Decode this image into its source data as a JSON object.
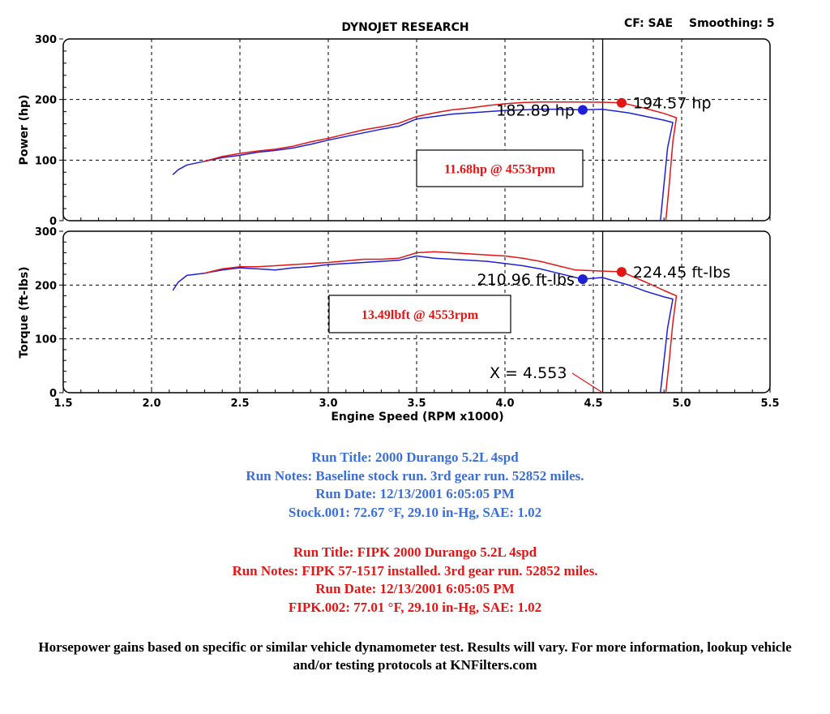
{
  "header": {
    "title": "DYNOJET RESEARCH",
    "cf_label": "CF: SAE",
    "smoothing_label": "Smoothing: 5"
  },
  "colors": {
    "baseline": "#1f1fd6",
    "modified": "#e31515",
    "baseline_text": "#3a6fd8",
    "modified_text": "#e31515"
  },
  "chart_data": [
    {
      "type": "line",
      "panel": "power",
      "ylabel": "Power (hp)",
      "ylim": [
        0,
        300
      ],
      "yticks": [
        0,
        100,
        200,
        300
      ],
      "xlim": [
        1.5,
        5.5
      ],
      "grid": true,
      "series": [
        {
          "id": "baseline",
          "points": [
            [
              2.12,
              76
            ],
            [
              2.15,
              84
            ],
            [
              2.2,
              92
            ],
            [
              2.3,
              98
            ],
            [
              2.4,
              104
            ],
            [
              2.5,
              108
            ],
            [
              2.6,
              113
            ],
            [
              2.7,
              116
            ],
            [
              2.8,
              120
            ],
            [
              2.9,
              126
            ],
            [
              3.0,
              133
            ],
            [
              3.1,
              139
            ],
            [
              3.2,
              145
            ],
            [
              3.3,
              151
            ],
            [
              3.4,
              156
            ],
            [
              3.5,
              168
            ],
            [
              3.6,
              172
            ],
            [
              3.7,
              176
            ],
            [
              3.8,
              178
            ],
            [
              3.9,
              180
            ],
            [
              4.0,
              182
            ],
            [
              4.1,
              183
            ],
            [
              4.2,
              184
            ],
            [
              4.3,
              184
            ],
            [
              4.44,
              182.89
            ],
            [
              4.55,
              184
            ],
            [
              4.7,
              178
            ],
            [
              4.8,
              172
            ],
            [
              4.9,
              166
            ],
            [
              4.95,
              162
            ],
            [
              4.92,
              120
            ],
            [
              4.9,
              60
            ],
            [
              4.88,
              0
            ]
          ]
        },
        {
          "id": "modified",
          "points": [
            [
              2.3,
              98
            ],
            [
              2.4,
              106
            ],
            [
              2.5,
              111
            ],
            [
              2.6,
              115
            ],
            [
              2.7,
              118
            ],
            [
              2.8,
              123
            ],
            [
              2.9,
              130
            ],
            [
              3.0,
              136
            ],
            [
              3.1,
              143
            ],
            [
              3.2,
              150
            ],
            [
              3.3,
              155
            ],
            [
              3.4,
              161
            ],
            [
              3.5,
              172
            ],
            [
              3.6,
              178
            ],
            [
              3.7,
              183
            ],
            [
              3.8,
              186
            ],
            [
              3.9,
              190
            ],
            [
              4.0,
              193
            ],
            [
              4.1,
              195
            ],
            [
              4.2,
              196
            ],
            [
              4.3,
              196
            ],
            [
              4.4,
              196
            ],
            [
              4.553,
              195.5
            ],
            [
              4.66,
              194.57
            ],
            [
              4.8,
              185
            ],
            [
              4.9,
              177
            ],
            [
              4.97,
              170
            ],
            [
              4.95,
              130
            ],
            [
              4.93,
              60
            ],
            [
              4.91,
              0
            ]
          ]
        }
      ],
      "peaks": [
        {
          "series": "baseline",
          "x": 4.44,
          "y": 182.89,
          "label": "182.89 hp"
        },
        {
          "series": "modified",
          "x": 4.66,
          "y": 194.57,
          "label": "194.57 hp"
        }
      ],
      "gain_label": "11.68hp @ 4553rpm"
    },
    {
      "type": "line",
      "panel": "torque",
      "ylabel": "Torque (ft-lbs)",
      "xlabel": "Engine Speed (RPM x1000)",
      "ylim": [
        0,
        300
      ],
      "yticks": [
        0,
        100,
        200,
        300
      ],
      "xlim": [
        1.5,
        5.5
      ],
      "xticks": [
        "1.5",
        "2.0",
        "2.5",
        "3.0",
        "3.5",
        "4.0",
        "4.5",
        "5.5"
      ],
      "xtick_values": [
        1.5,
        2.0,
        2.5,
        3.0,
        3.5,
        4.0,
        4.5,
        5.5
      ],
      "xtick_extra": {
        "value": 5.0,
        "label": "5.0"
      },
      "grid": true,
      "series": [
        {
          "id": "baseline",
          "points": [
            [
              2.12,
              190
            ],
            [
              2.15,
              205
            ],
            [
              2.2,
              218
            ],
            [
              2.3,
              222
            ],
            [
              2.4,
              228
            ],
            [
              2.5,
              232
            ],
            [
              2.6,
              230
            ],
            [
              2.7,
              228
            ],
            [
              2.8,
              232
            ],
            [
              2.9,
              234
            ],
            [
              3.0,
              238
            ],
            [
              3.1,
              240
            ],
            [
              3.2,
              242
            ],
            [
              3.3,
              244
            ],
            [
              3.4,
              246
            ],
            [
              3.5,
              254
            ],
            [
              3.6,
              250
            ],
            [
              3.7,
              248
            ],
            [
              3.8,
              246
            ],
            [
              3.9,
              244
            ],
            [
              4.0,
              240
            ],
            [
              4.1,
              236
            ],
            [
              4.2,
              230
            ],
            [
              4.3,
              222
            ],
            [
              4.44,
              210.96
            ],
            [
              4.55,
              214
            ],
            [
              4.7,
              200
            ],
            [
              4.8,
              188
            ],
            [
              4.9,
              178
            ],
            [
              4.95,
              174
            ],
            [
              4.92,
              120
            ],
            [
              4.9,
              60
            ],
            [
              4.88,
              0
            ]
          ]
        },
        {
          "id": "modified",
          "points": [
            [
              2.3,
              222
            ],
            [
              2.4,
              230
            ],
            [
              2.5,
              234
            ],
            [
              2.6,
              234
            ],
            [
              2.7,
              236
            ],
            [
              2.8,
              238
            ],
            [
              2.9,
              240
            ],
            [
              3.0,
              242
            ],
            [
              3.1,
              245
            ],
            [
              3.2,
              248
            ],
            [
              3.3,
              248
            ],
            [
              3.4,
              250
            ],
            [
              3.5,
              260
            ],
            [
              3.6,
              262
            ],
            [
              3.7,
              260
            ],
            [
              3.8,
              258
            ],
            [
              3.9,
              256
            ],
            [
              4.0,
              254
            ],
            [
              4.1,
              250
            ],
            [
              4.2,
              244
            ],
            [
              4.3,
              236
            ],
            [
              4.4,
              228
            ],
            [
              4.553,
              226
            ],
            [
              4.66,
              224.45
            ],
            [
              4.8,
              205
            ],
            [
              4.9,
              190
            ],
            [
              4.97,
              180
            ],
            [
              4.95,
              130
            ],
            [
              4.93,
              60
            ],
            [
              4.91,
              0
            ]
          ]
        }
      ],
      "peaks": [
        {
          "series": "baseline",
          "x": 4.44,
          "y": 210.96,
          "label": "210.96 ft-lbs"
        },
        {
          "series": "modified",
          "x": 4.66,
          "y": 224.45,
          "label": "224.45 ft-lbs"
        }
      ],
      "gain_label": "13.49lbft @ 4553rpm",
      "cursor": {
        "x": 4.553,
        "label": "X = 4.553"
      }
    }
  ],
  "runs": {
    "baseline": [
      "Run Title: 2000 Durango 5.2L 4spd",
      "Run Notes: Baseline stock run. 3rd gear run. 52852 miles.",
      "Run Date: 12/13/2001 6:05:05 PM",
      "Stock.001: 72.67 °F, 29.10 in-Hg, SAE: 1.02"
    ],
    "modified": [
      "Run Title: FIPK 2000 Durango 5.2L 4spd",
      "Run Notes: FIPK 57-1517 installed. 3rd gear run. 52852 miles.",
      "Run Date: 12/13/2001 6:05:05 PM",
      "FIPK.002: 77.01 °F, 29.10 in-Hg, SAE: 1.02"
    ]
  },
  "disclaimer": "Horsepower gains based on specific or similar vehicle dynamometer test. Results will vary. For more information, lookup vehicle and/or testing protocols at KNFilters.com"
}
